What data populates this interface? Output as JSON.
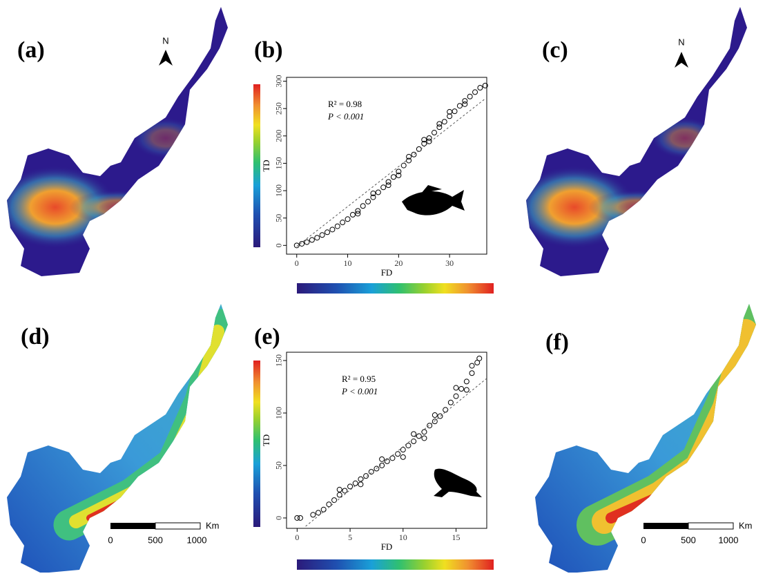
{
  "panels": {
    "labels": [
      "(a)",
      "(b)",
      "(c)",
      "(d)",
      "(e)",
      "(f)"
    ]
  },
  "north": [
    "N",
    "N"
  ],
  "scale_bars": [
    {
      "labels": [
        "0",
        "500",
        "1000"
      ],
      "unit": "Km"
    },
    {
      "labels": [
        "0",
        "500",
        "1000"
      ],
      "unit": "Km"
    }
  ],
  "chart_data": [
    {
      "type": "scatter",
      "xlabel": "FD",
      "ylabel": "TD",
      "annotations": [
        "R² = 0.98",
        "P < 0.001"
      ],
      "xlim": [
        -2,
        37.3
      ],
      "ylim": [
        -16,
        307
      ],
      "xticks": [
        0,
        10,
        20,
        30
      ],
      "yticks": [
        0,
        50,
        100,
        150,
        200,
        250,
        300
      ],
      "x": [
        0,
        1,
        2,
        3,
        4,
        5,
        6,
        7,
        8,
        9,
        10,
        11,
        12,
        13,
        14,
        15,
        16,
        17,
        18,
        19,
        20,
        21,
        22,
        23,
        24,
        25,
        26,
        27,
        28,
        29,
        30,
        31,
        32,
        33,
        34,
        35,
        36,
        37,
        12,
        15,
        18,
        22,
        26,
        30,
        20,
        25,
        28,
        33
      ],
      "values": [
        0,
        3,
        6,
        10,
        14,
        19,
        24,
        29,
        35,
        42,
        48,
        56,
        63,
        72,
        80,
        88,
        97,
        106,
        116,
        125,
        135,
        146,
        155,
        166,
        176,
        186,
        196,
        206,
        216,
        226,
        236,
        245,
        255,
        264,
        272,
        280,
        288,
        292,
        58,
        95,
        110,
        162,
        190,
        244,
        128,
        193,
        222,
        258
      ],
      "trend_x": [
        0,
        37
      ],
      "trend_values": [
        -2,
        268
      ],
      "color": "#000000"
    },
    {
      "type": "scatter",
      "xlabel": "FD",
      "ylabel": "TD",
      "annotations": [
        "R² = 0.95",
        "P < 0.001"
      ],
      "xlim": [
        -1,
        17.9
      ],
      "ylim": [
        -9.9,
        157.9
      ],
      "xticks": [
        0,
        5,
        10,
        15
      ],
      "yticks": [
        0,
        50,
        100,
        150
      ],
      "x": [
        0,
        0.3,
        1.5,
        2,
        2.5,
        3,
        3.5,
        4,
        4.5,
        5,
        5.5,
        6,
        6.5,
        7,
        7.5,
        8,
        8.5,
        9,
        9.5,
        10,
        10.5,
        11,
        11.5,
        12,
        12.5,
        13,
        13.5,
        14,
        14.5,
        15,
        15.5,
        16,
        16.5,
        17,
        17.2,
        4,
        6,
        8,
        10,
        11,
        13,
        15,
        16,
        12,
        16.5
      ],
      "values": [
        0,
        0,
        3,
        5,
        8,
        13,
        17,
        22,
        26,
        30,
        33,
        37,
        40,
        44,
        47,
        50,
        54,
        57,
        61,
        65,
        69,
        73,
        78,
        82,
        88,
        92,
        97,
        103,
        110,
        116,
        123,
        130,
        138,
        148,
        152,
        27,
        32,
        56,
        58,
        80,
        98,
        124,
        122,
        76,
        145
      ],
      "trend_x": [
        0.8,
        17.9
      ],
      "trend_values": [
        -8,
        133
      ],
      "color": "#000000"
    }
  ]
}
